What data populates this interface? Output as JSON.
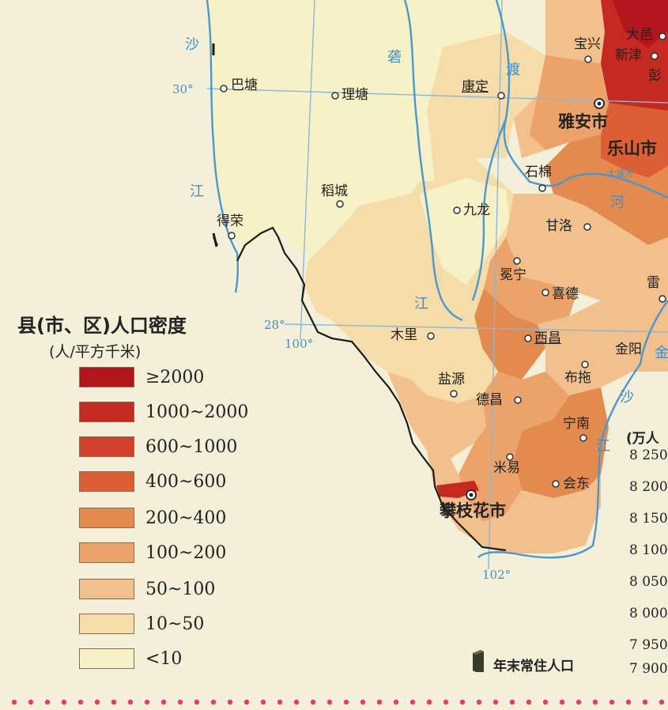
{
  "colors": {
    "background": "#f4efd9",
    "river": "#3d8fc9",
    "border": "#1b1b1b",
    "dot": "#e23d72",
    "density": [
      "#b3161c",
      "#c52a22",
      "#d0402a",
      "#db5e34",
      "#e38a4f",
      "#eba36a",
      "#f1c08d",
      "#f5dca8",
      "#f6f1c6"
    ]
  },
  "legend": {
    "title": "县(市、区)人口密度",
    "unit": "(人/平方千米)",
    "classes": [
      "≥2000",
      "1000~2000",
      "600~1000",
      "400~600",
      "200~400",
      "100~200",
      "50~100",
      "10~50",
      "<10"
    ]
  },
  "places": {
    "batang": "巴塘",
    "litang": "理塘",
    "kangding": "康定",
    "baoxing": "宝兴",
    "dayi": "大邑",
    "xinjin": "新津",
    "peng": "彭",
    "yaan": "雅安市",
    "leshan": "乐山市",
    "shimian": "石棉",
    "daocheng": "稻城",
    "derong": "得荣",
    "jiulong": "九龙",
    "ganluo": "甘洛",
    "mianning": "冕宁",
    "xide": "喜德",
    "lei": "雷",
    "muli": "木里",
    "xichang": "西昌",
    "jinyang": "金阳",
    "butuo": "布拖",
    "yanyuan": "盐源",
    "dechang": "德昌",
    "ningnan": "宁南",
    "miyi": "米易",
    "huidong": "会东",
    "panzhihua": "攀枝花市"
  },
  "rivers": {
    "sha1": "沙",
    "jiang1": "江",
    "jiang2": "江",
    "jiang3": "江",
    "he": "河",
    "jin": "金",
    "sha2": "沙",
    "lan": "砻",
    "du": "渡",
    "dadu": "大渡河"
  },
  "coords": {
    "lat30": "30°",
    "lat28": "28°",
    "lon100": "100°",
    "lon102": "102°"
  },
  "population_chart": {
    "title": "(万人",
    "ticks": [
      "8 250",
      "8 200",
      "8 150",
      "8 100",
      "8 050",
      "8 000",
      "7 950",
      "7 900"
    ],
    "key_label": "年末常住人口"
  }
}
